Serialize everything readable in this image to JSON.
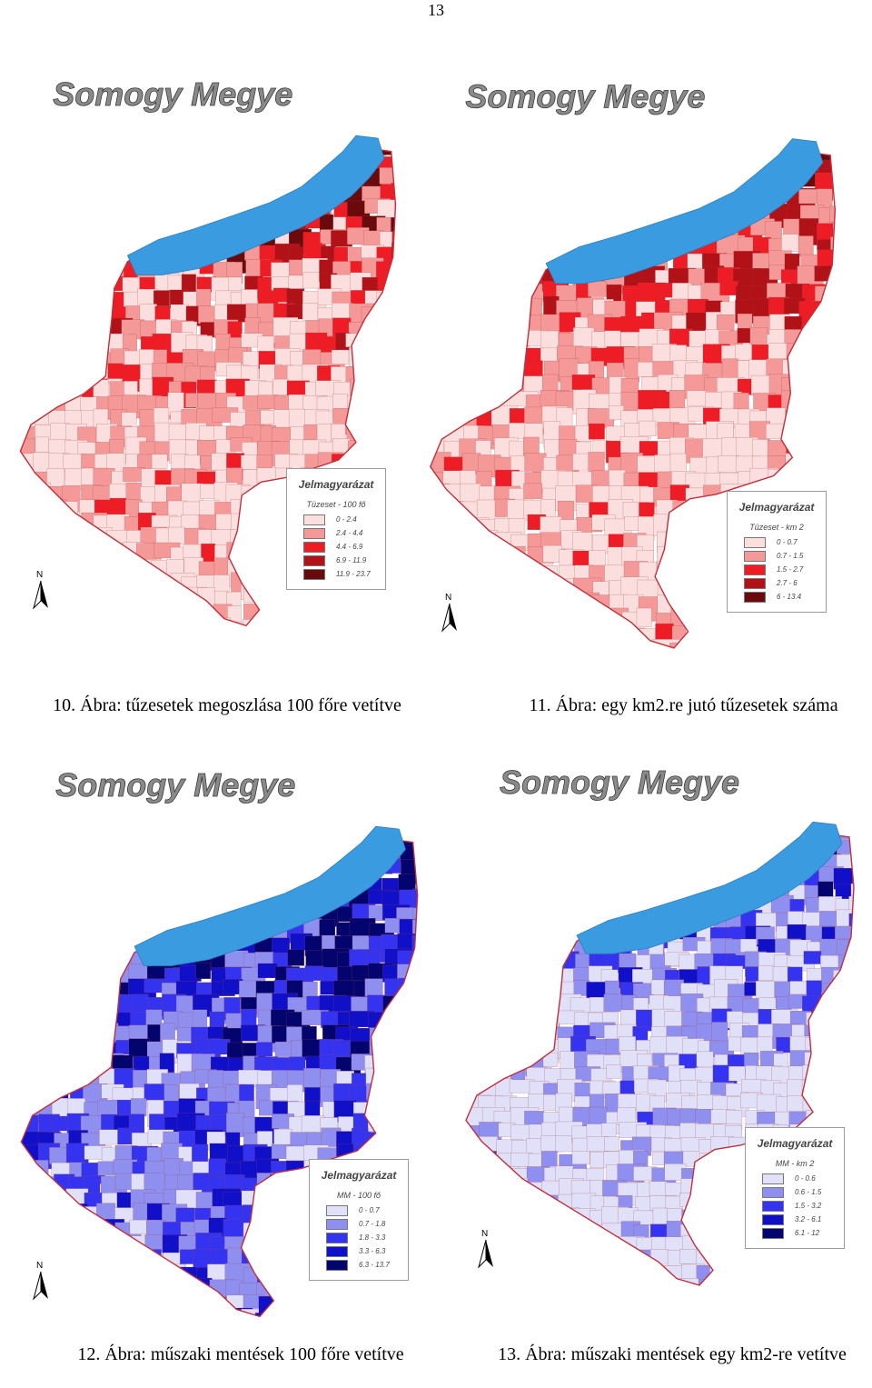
{
  "page_number": "13",
  "colors": {
    "lake": "#3a9be0",
    "border_red": "#c0303c"
  },
  "panels": [
    {
      "title": "Somogy Megye",
      "caption": "10. Ábra: tűzesetek megoszlása 100 főre vetítve",
      "legend": {
        "title": "Jelmagyarázat",
        "subtitle": "Tüzeset - 100 fő",
        "items": [
          {
            "label": "0 - 2.4",
            "color": "#fbdede"
          },
          {
            "label": "2.4 - 4.4",
            "color": "#f59898"
          },
          {
            "label": "4.4 - 6.9",
            "color": "#ee1c25"
          },
          {
            "label": "6.9 - 11.9",
            "color": "#b01218"
          },
          {
            "label": "11.9 - 23.7",
            "color": "#6b0a0d"
          }
        ]
      },
      "north_label": "N"
    },
    {
      "title": "Somogy Megye",
      "caption": "11. Ábra: egy km2.re jutó tűzesetek száma",
      "legend": {
        "title": "Jelmagyarázat",
        "subtitle": "Tüzeset - km 2",
        "items": [
          {
            "label": "0 - 0.7",
            "color": "#fbdede"
          },
          {
            "label": "0.7 - 1.5",
            "color": "#f59898"
          },
          {
            "label": "1.5 - 2.7",
            "color": "#ee1c25"
          },
          {
            "label": "2.7 - 6",
            "color": "#b01218"
          },
          {
            "label": "6 - 13.4",
            "color": "#6b0a0d"
          }
        ]
      },
      "north_label": "N"
    },
    {
      "title": "Somogy Megye",
      "caption": "12. Ábra: műszaki mentések 100 főre vetítve",
      "legend": {
        "title": "Jelmagyarázat",
        "subtitle": "MM - 100 fő",
        "items": [
          {
            "label": "0 - 0.7",
            "color": "#e0e0f8"
          },
          {
            "label": "0.7 - 1.8",
            "color": "#8f8ff0"
          },
          {
            "label": "1.8 - 3.3",
            "color": "#3434f0"
          },
          {
            "label": "3.3 - 6.3",
            "color": "#1010c8"
          },
          {
            "label": "6.3 - 13.7",
            "color": "#04046e"
          }
        ]
      },
      "north_label": "N"
    },
    {
      "title": "Somogy Megye",
      "caption": "13. Ábra: műszaki mentések egy km2-re vetítve",
      "legend": {
        "title": "Jelmagyarázat",
        "subtitle": "MM - km 2",
        "items": [
          {
            "label": "0 - 0.6",
            "color": "#e0e0f8"
          },
          {
            "label": "0.6 - 1.5",
            "color": "#8f8ff0"
          },
          {
            "label": "1.5 - 3.2",
            "color": "#3434f0"
          },
          {
            "label": "3.2 - 6.1",
            "color": "#1010c8"
          },
          {
            "label": "6.1 - 12",
            "color": "#04046e"
          }
        ]
      },
      "north_label": "N"
    }
  ]
}
